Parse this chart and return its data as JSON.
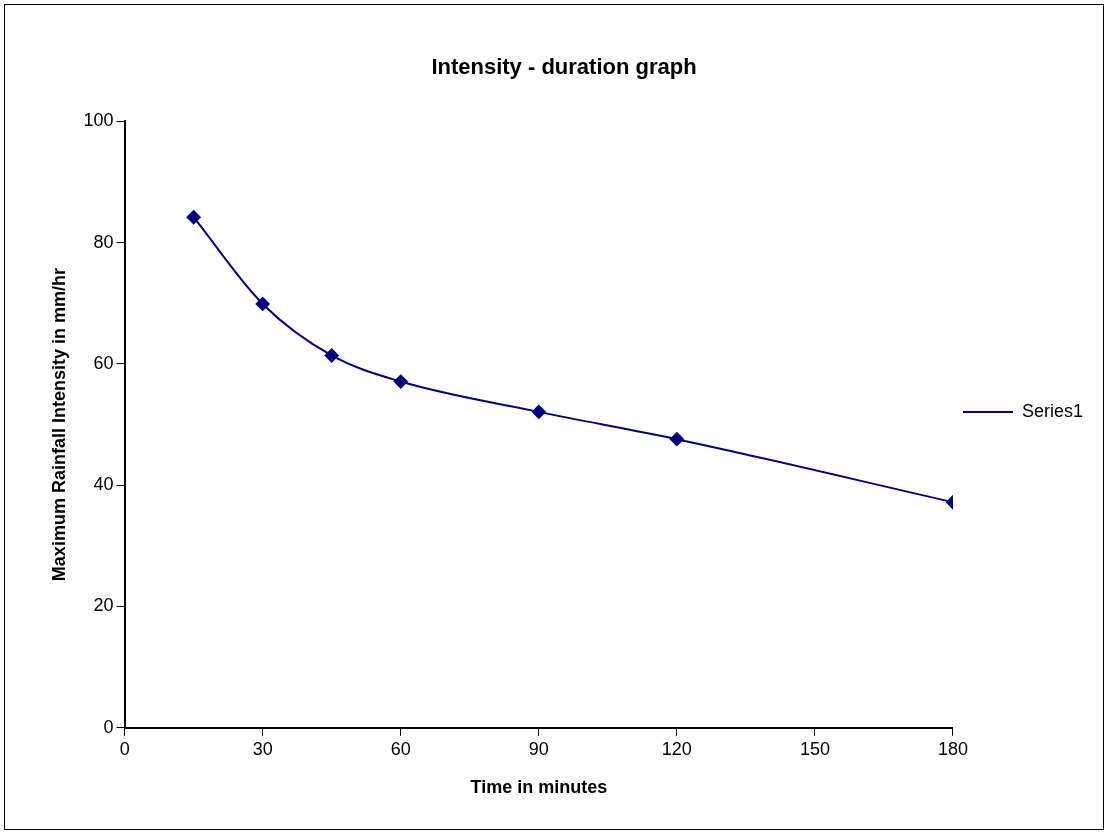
{
  "chart_data": {
    "type": "line",
    "title": "Intensity - duration graph",
    "xlabel": "Time in minutes",
    "ylabel": "Maximum Rainfall Intensity in mm/hr",
    "x": [
      15,
      30,
      45,
      60,
      90,
      120,
      180
    ],
    "series": [
      {
        "name": "Series1",
        "color": "#000080",
        "values": [
          84.2,
          69.9,
          61.4,
          57.1,
          52.1,
          47.6,
          37.2
        ]
      }
    ],
    "xlim": [
      0,
      180
    ],
    "xticks": [
      0,
      30,
      60,
      90,
      120,
      150,
      180
    ],
    "ylim": [
      0,
      100
    ],
    "yticks": [
      0,
      20,
      40,
      60,
      80,
      100
    ],
    "grid": false,
    "legend": "right",
    "marker": "diamond",
    "line_style": "solid"
  }
}
